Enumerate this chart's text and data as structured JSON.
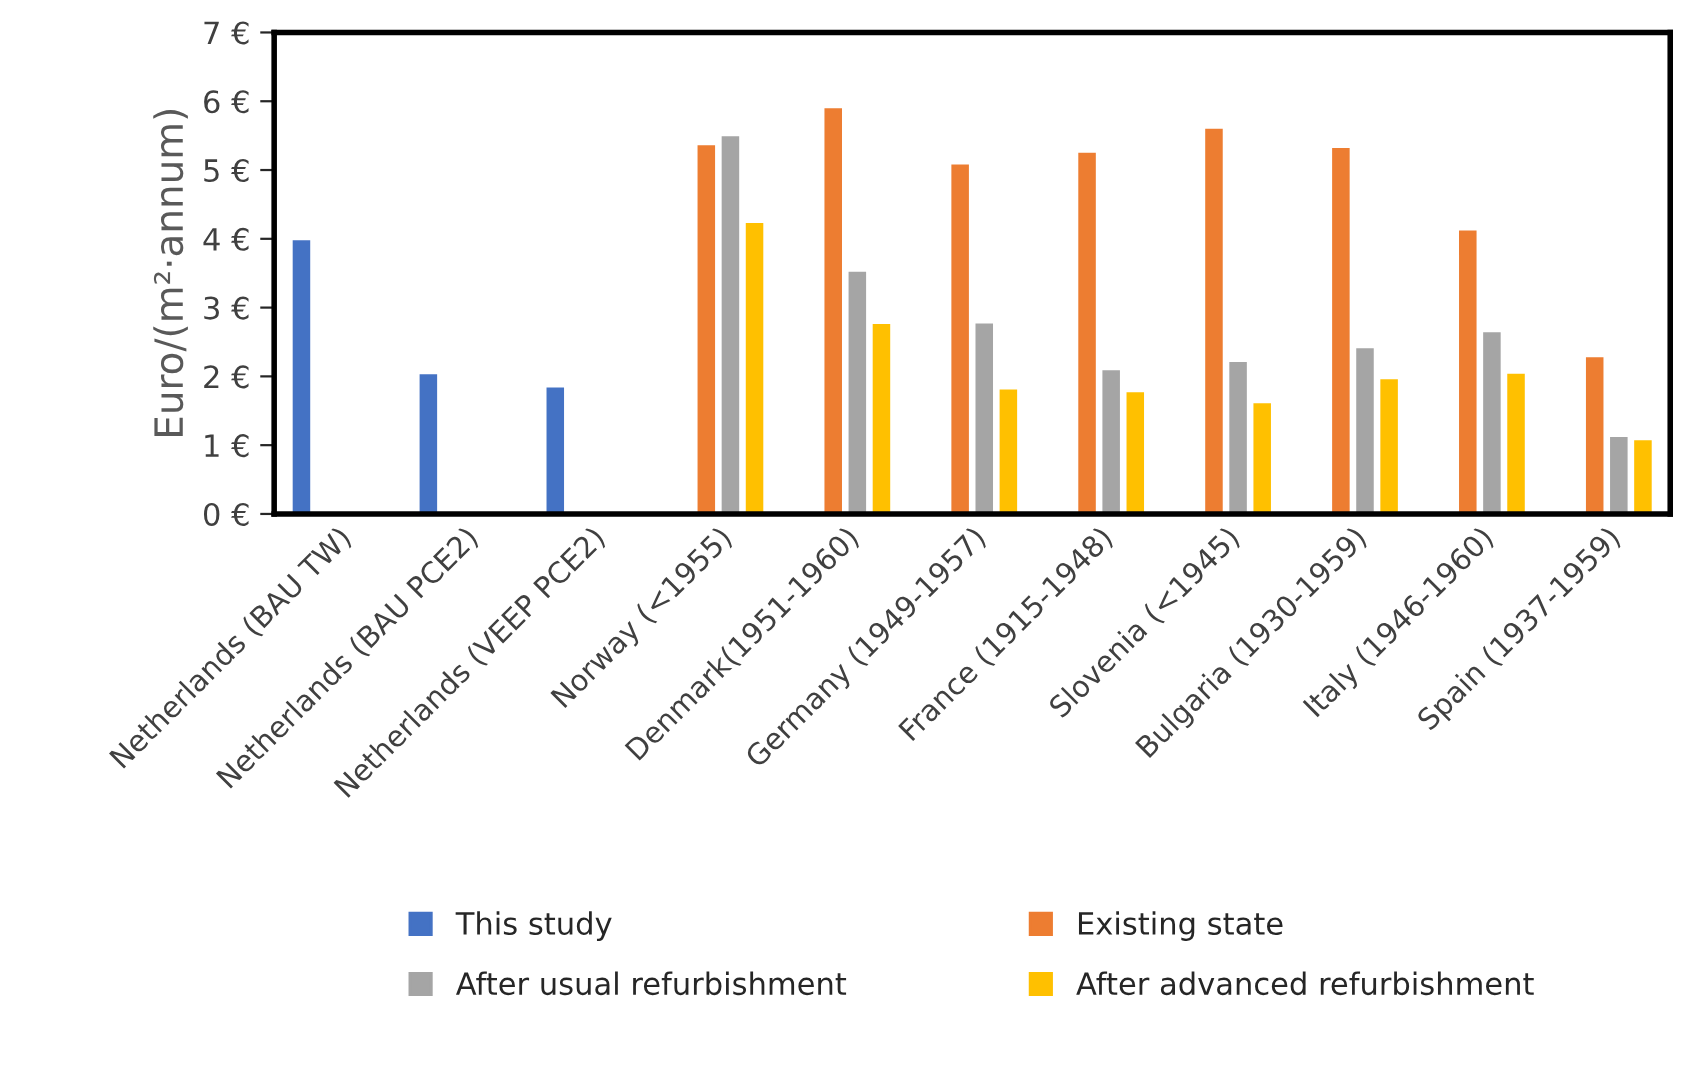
{
  "chart_data": {
    "type": "bar",
    "ylabel": "Euro/(m²·annum)",
    "categories": [
      "Netherlands (BAU TW)",
      "Netherlands (BAU PCE2)",
      "Netherlands (VEEP PCE2)",
      "Norway (<1955)",
      "Denmark(1951-1960)",
      "Germany (1949-1957)",
      "France (1915-1948)",
      "Slovenia (<1945)",
      "Bulgaria (1930-1959)",
      "Italy (1946-1960)",
      "Spain (1937-1959)"
    ],
    "series": [
      {
        "name": "This study",
        "color": "#4472c4",
        "values": [
          4.0,
          2.05,
          1.86,
          null,
          null,
          null,
          null,
          null,
          null,
          null,
          null
        ]
      },
      {
        "name": "Existing state",
        "color": "#ed7d31",
        "values": [
          null,
          null,
          null,
          5.38,
          5.92,
          5.1,
          5.27,
          5.62,
          5.34,
          4.14,
          2.3
        ]
      },
      {
        "name": "After usual refurbishment",
        "color": "#a5a5a5",
        "values": [
          null,
          null,
          null,
          5.51,
          3.54,
          2.79,
          2.11,
          2.23,
          2.43,
          2.66,
          1.14
        ]
      },
      {
        "name": "After advanced refurbishment",
        "color": "#ffc000",
        "values": [
          null,
          null,
          null,
          4.25,
          2.78,
          1.83,
          1.79,
          1.63,
          1.98,
          2.06,
          1.09
        ]
      }
    ],
    "ylim": [
      0,
      7
    ],
    "yticks": [
      {
        "value": 0,
        "label": "0 €"
      },
      {
        "value": 1,
        "label": "1 €"
      },
      {
        "value": 2,
        "label": "2 €"
      },
      {
        "value": 3,
        "label": "3 €"
      },
      {
        "value": 4,
        "label": "4 €"
      },
      {
        "value": 5,
        "label": "5 €"
      },
      {
        "value": 6,
        "label": "6 €"
      },
      {
        "value": 7,
        "label": "7 €"
      }
    ],
    "grid": false,
    "legend": "bottom"
  }
}
